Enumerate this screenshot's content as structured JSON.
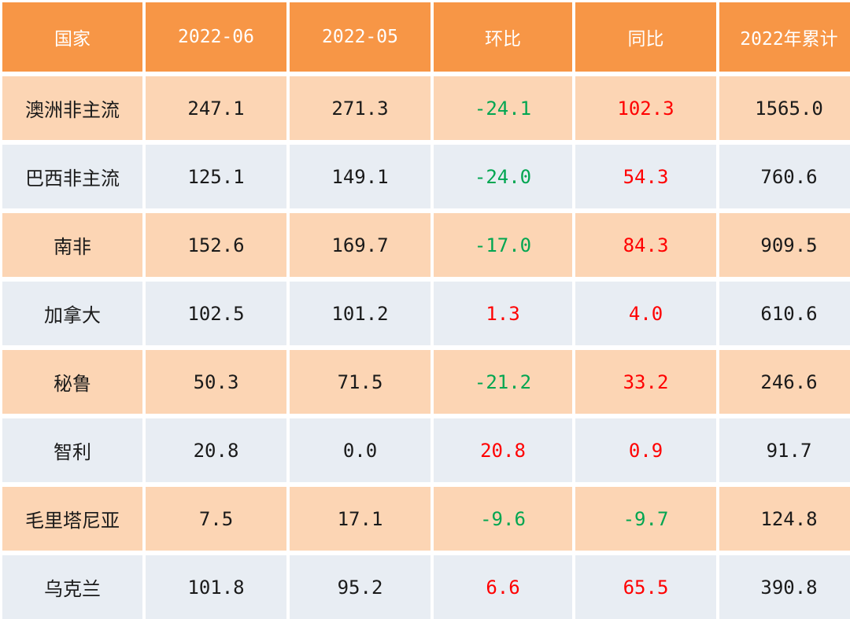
{
  "chart_data": {
    "type": "table",
    "columns": [
      "国家",
      "2022-06",
      "2022-05",
      "环比",
      "同比",
      "2022年累计"
    ],
    "rows": [
      {
        "country": "澳洲非主流",
        "jun": "247.1",
        "may": "271.3",
        "mom": "-24.1",
        "yoy": "102.3",
        "ytd": "1565.0"
      },
      {
        "country": "巴西非主流",
        "jun": "125.1",
        "may": "149.1",
        "mom": "-24.0",
        "yoy": "54.3",
        "ytd": "760.6"
      },
      {
        "country": "南非",
        "jun": "152.6",
        "may": "169.7",
        "mom": "-17.0",
        "yoy": "84.3",
        "ytd": "909.5"
      },
      {
        "country": "加拿大",
        "jun": "102.5",
        "may": "101.2",
        "mom": "1.3",
        "yoy": "4.0",
        "ytd": "610.6"
      },
      {
        "country": "秘鲁",
        "jun": "50.3",
        "may": "71.5",
        "mom": "-21.2",
        "yoy": "33.2",
        "ytd": "246.6"
      },
      {
        "country": "智利",
        "jun": "20.8",
        "may": "0.0",
        "mom": "20.8",
        "yoy": "0.9",
        "ytd": "91.7"
      },
      {
        "country": "毛里塔尼亚",
        "jun": "7.5",
        "may": "17.1",
        "mom": "-9.6",
        "yoy": "-9.7",
        "ytd": "124.8"
      },
      {
        "country": "乌克兰",
        "jun": "101.8",
        "may": "95.2",
        "mom": "6.6",
        "yoy": "65.5",
        "ytd": "390.8"
      }
    ]
  },
  "colors": {
    "header_bg": "#f79646",
    "header_text": "#ffffff",
    "row_odd_bg": "#fcd5b4",
    "row_even_bg": "#e8edf3",
    "positive_text": "#ff0000",
    "negative_text": "#00a651",
    "body_text": "#1a1a1a"
  }
}
